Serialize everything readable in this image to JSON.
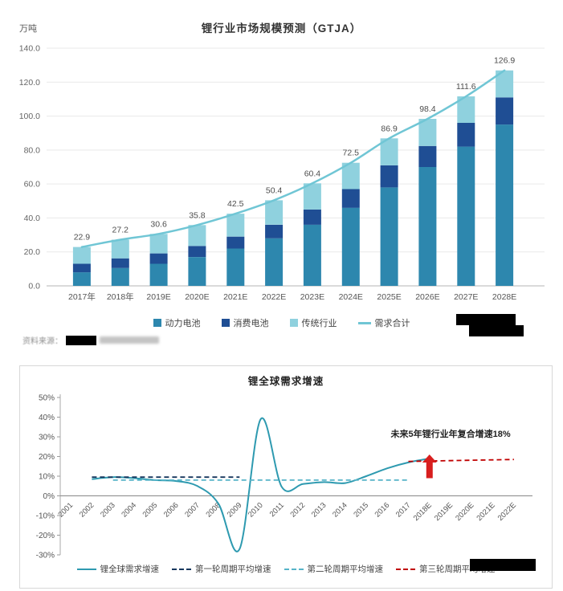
{
  "top_chart": {
    "title": "锂行业市场规模预测（GTJA）",
    "unit": "万吨",
    "source_prefix": "资料来源：",
    "legend": [
      {
        "label": "动力电池",
        "color": "#2d87ae"
      },
      {
        "label": "消费电池",
        "color": "#1f4e94"
      },
      {
        "label": "传统行业",
        "color": "#8fd1de"
      },
      {
        "label": "需求合计",
        "color": "#70c6d5"
      }
    ]
  },
  "bottom_chart": {
    "title": "锂全球需求增速",
    "annotation": "未来5年锂行业年复合增速18%",
    "legend": [
      {
        "label": "锂全球需求增速",
        "color": "#2e9ab0",
        "style": "solid"
      },
      {
        "label": "第一轮周期平均增速",
        "color": "#17375e",
        "style": "dashed"
      },
      {
        "label": "第二轮周期平均增速",
        "color": "#56b4c8",
        "style": "dashed"
      },
      {
        "label": "第三轮周期平均增速",
        "color": "#c00000",
        "style": "dashed"
      }
    ]
  },
  "chart_data": [
    {
      "type": "bar",
      "stacked": true,
      "title": "锂行业市场规模预测（GTJA）",
      "ylabel": "万吨",
      "ylim": [
        0,
        140
      ],
      "ytick_step": 20,
      "grid": true,
      "legend_position": "bottom",
      "categories": [
        "2017年",
        "2018年",
        "2019E",
        "2020E",
        "2021E",
        "2022E",
        "2023E",
        "2024E",
        "2025E",
        "2026E",
        "2027E",
        "2028E"
      ],
      "totals": [
        22.9,
        27.2,
        30.6,
        35.8,
        42.5,
        50.4,
        60.4,
        72.5,
        86.9,
        98.4,
        111.6,
        126.9
      ],
      "series": [
        {
          "name": "动力电池",
          "color": "#2d87ae",
          "values": [
            8.0,
            10.5,
            13.0,
            17.0,
            22.0,
            28.0,
            36.0,
            46.0,
            58.0,
            70.0,
            82.0,
            95.0
          ]
        },
        {
          "name": "消费电池",
          "color": "#1f4e94",
          "values": [
            5.0,
            5.7,
            6.1,
            6.5,
            7.0,
            8.0,
            9.0,
            11.0,
            13.0,
            12.4,
            14.0,
            16.0
          ]
        },
        {
          "name": "传统行业",
          "color": "#8fd1de",
          "values": [
            9.9,
            11.0,
            11.5,
            12.3,
            13.5,
            14.4,
            15.4,
            15.5,
            15.9,
            16.0,
            15.6,
            15.9
          ]
        }
      ],
      "line_series": {
        "name": "需求合计",
        "color": "#70c6d5"
      }
    },
    {
      "type": "line",
      "title": "锂全球需求增速",
      "ylim": [
        -30,
        50
      ],
      "ytick_step": 10,
      "ytick_suffix": "%",
      "grid": false,
      "legend_position": "bottom",
      "categories": [
        "2001",
        "2002",
        "2003",
        "2004",
        "2005",
        "2006",
        "2007",
        "2008",
        "2009",
        "2010",
        "2011",
        "2012",
        "2013",
        "2014",
        "2015",
        "2016",
        "2017",
        "2018E",
        "2019E",
        "2020E",
        "2021E",
        "2022E"
      ],
      "series": [
        {
          "name": "锂全球需求增速",
          "color": "#2e9ab0",
          "style": "solid",
          "smooth": true,
          "width": 2,
          "x": [
            "2002",
            "2003",
            "2004",
            "2005",
            "2006",
            "2007",
            "2008",
            "2009",
            "2010",
            "2011",
            "2012",
            "2013",
            "2014",
            "2015",
            "2016",
            "2017",
            "2018E"
          ],
          "values": [
            8.5,
            9.5,
            9,
            8,
            7.5,
            5,
            -4,
            -27,
            39,
            4.5,
            6,
            7,
            6.5,
            10,
            14,
            17,
            19
          ]
        },
        {
          "name": "第一轮周期平均增速",
          "color": "#17375e",
          "style": "dashed",
          "x": [
            "2002",
            "2009"
          ],
          "values": [
            9.5,
            9.5
          ]
        },
        {
          "name": "第二轮周期平均增速",
          "color": "#56b4c8",
          "style": "dashed",
          "x": [
            "2003",
            "2017"
          ],
          "values": [
            8,
            8
          ]
        },
        {
          "name": "第三轮周期平均增速",
          "color": "#c00000",
          "style": "dashed",
          "x": [
            "2017",
            "2022E"
          ],
          "values": [
            17.5,
            18.5
          ]
        }
      ],
      "annotation": {
        "text": "未来5年锂行业年复合增速18%",
        "x": "2019E",
        "y": 30
      },
      "arrow": {
        "x": "2018E",
        "from": 9,
        "to": 21,
        "color": "#d81e1e"
      }
    }
  ]
}
